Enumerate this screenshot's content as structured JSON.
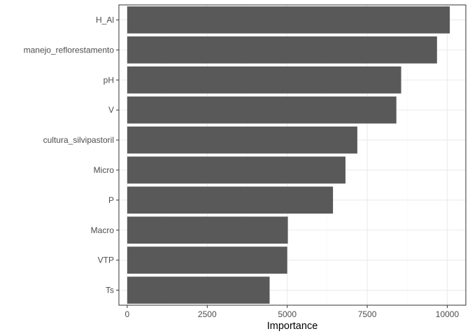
{
  "chart_data": {
    "type": "bar",
    "orientation": "horizontal",
    "categories": [
      "H_Al",
      "manejo_reflorestamento",
      "pH",
      "V",
      "cultura_silvipastoril",
      "Micro",
      "P",
      "Macro",
      "VTP",
      "Ts"
    ],
    "values": [
      10080,
      9680,
      8560,
      8410,
      7190,
      6820,
      6430,
      5020,
      5000,
      4450
    ],
    "xlabel": "Importance",
    "ylabel": "",
    "title": "",
    "xlim": [
      -260,
      10580
    ],
    "x_ticks": [
      0,
      2500,
      5000,
      7500,
      10000
    ],
    "grid": true,
    "legend": "none",
    "colors": {
      "bar": "#595959",
      "panel_border": "#333333",
      "grid_major": "#ebebeb",
      "grid_minor": "#f5f5f5",
      "tick_text": "#4d4d4d"
    }
  }
}
